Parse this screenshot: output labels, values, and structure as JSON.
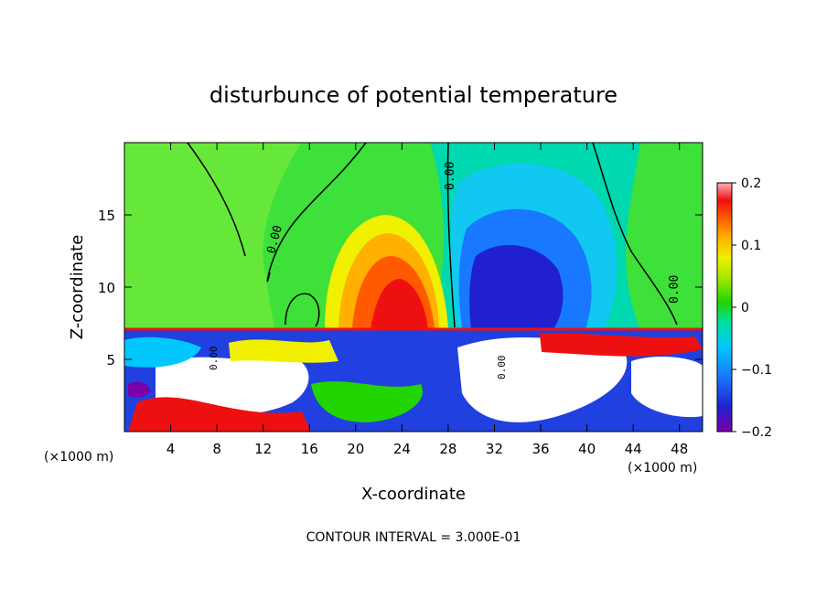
{
  "chart_data": {
    "type": "heatmap",
    "title": "disturbunce of potential temperature",
    "xlabel": "X-coordinate",
    "ylabel": "Z-coordinate",
    "x_unit_label": "(×1000 m)",
    "z_unit_label": "(×1000 m)",
    "xlim": [
      0,
      50
    ],
    "ylim": [
      0,
      20
    ],
    "x_ticks": [
      4,
      8,
      12,
      16,
      20,
      24,
      28,
      32,
      36,
      40,
      44,
      48
    ],
    "y_ticks": [
      5,
      10,
      15
    ],
    "colorbar": {
      "range": [
        -0.2,
        0.2
      ],
      "tick_values": [
        0.2,
        0.1,
        0,
        -0.1,
        -0.2
      ],
      "tick_labels": [
        "0.2",
        "0.1",
        "0",
        "−0.1",
        "−0.2"
      ]
    },
    "contour_labels": [
      "0.00",
      "0.00",
      "0.00",
      "0.00",
      "0.00"
    ],
    "footer": "CONTOUR INTERVAL = 3.000E-01",
    "grid": false
  }
}
